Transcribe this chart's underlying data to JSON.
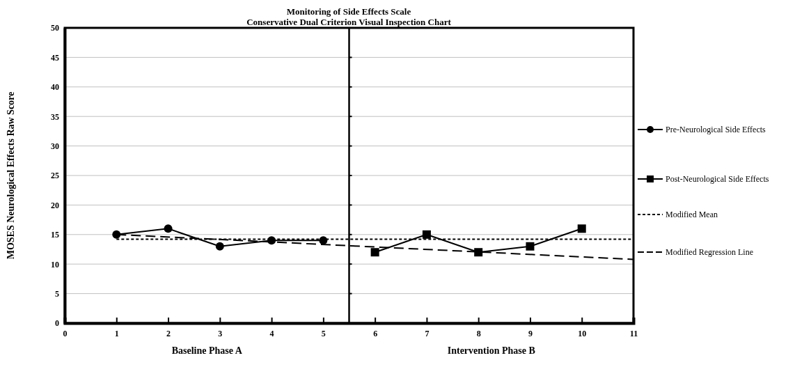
{
  "chart_data": {
    "type": "line",
    "title": "Monitoring of Side Effects Scale",
    "subtitle": "Conservative Dual Criterion Visual Inspection Chart",
    "ylabel": "MOSES Neurological Effects Raw Score",
    "xlim": [
      0,
      11
    ],
    "xticks": [
      0,
      1,
      2,
      3,
      4,
      5,
      6,
      7,
      8,
      9,
      10,
      11
    ],
    "ylim": [
      0,
      50
    ],
    "yticks": [
      0,
      5,
      10,
      15,
      20,
      25,
      30,
      35,
      40,
      45,
      50
    ],
    "grid": "y",
    "legend": "right",
    "series": [
      {
        "name": "Pre-Neurological Side Effects",
        "color": "#000000",
        "x": [
          1,
          2,
          3,
          4,
          5
        ],
        "values": [
          15,
          16,
          13,
          14,
          14
        ],
        "marker": "circle",
        "line_style": "solid"
      },
      {
        "name": "Post-Neurological Side Effects",
        "color": "#000000",
        "x": [
          6,
          7,
          8,
          9,
          10
        ],
        "values": [
          12,
          15,
          12,
          13,
          16
        ],
        "marker": "square",
        "line_style": "solid"
      },
      {
        "name": "Modified Mean",
        "color": "#000000",
        "x": [
          1,
          11
        ],
        "values": [
          14.2,
          14.2
        ],
        "marker": "none",
        "line_style": "dotted"
      },
      {
        "name": "Modified Regression Line",
        "color": "#000000",
        "x": [
          1,
          11
        ],
        "values": [
          15,
          10.8
        ],
        "marker": "none",
        "line_style": "dashed"
      }
    ],
    "ref_lines": [
      {
        "axis": "x",
        "value": 5.5,
        "color": "#000000",
        "line_style": "solid"
      }
    ],
    "annotations": [
      "Baseline Phase A",
      "Intervention Phase B"
    ]
  }
}
